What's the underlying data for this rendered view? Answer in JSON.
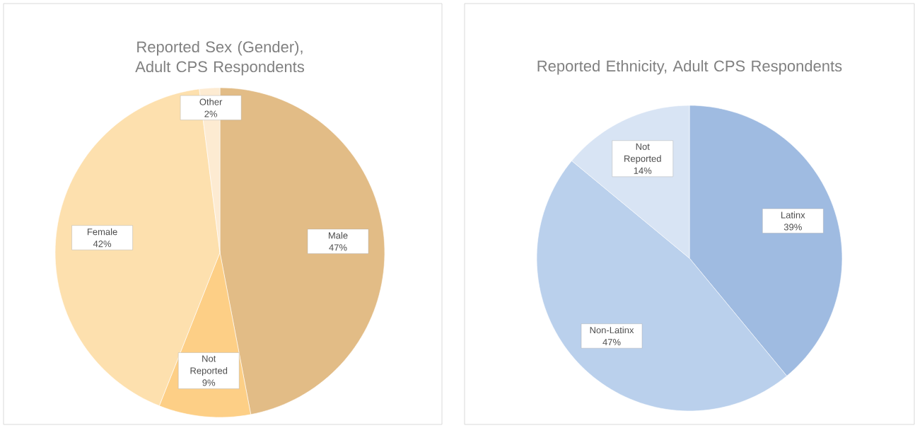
{
  "chart_data": [
    {
      "type": "pie",
      "title": "Reported Sex (Gender), Adult CPS Respondents",
      "categories": [
        "Male",
        "Not Reported",
        "Female",
        "Other"
      ],
      "values": [
        47,
        9,
        42,
        2
      ],
      "value_labels": [
        "47%",
        "9%",
        "42%",
        "2%"
      ],
      "colors": [
        "#e2bc86",
        "#fdcf86",
        "#fde0ae",
        "#fdebd2"
      ]
    },
    {
      "type": "pie",
      "title": "Reported Ethnicity, Adult CPS Respondents",
      "categories": [
        "Latinx",
        "Non-Latinx",
        "Not Reported"
      ],
      "values": [
        39,
        47,
        14
      ],
      "value_labels": [
        "39%",
        "47%",
        "14%"
      ],
      "colors": [
        "#9fbbe1",
        "#bad0ec",
        "#d8e4f4"
      ]
    }
  ]
}
